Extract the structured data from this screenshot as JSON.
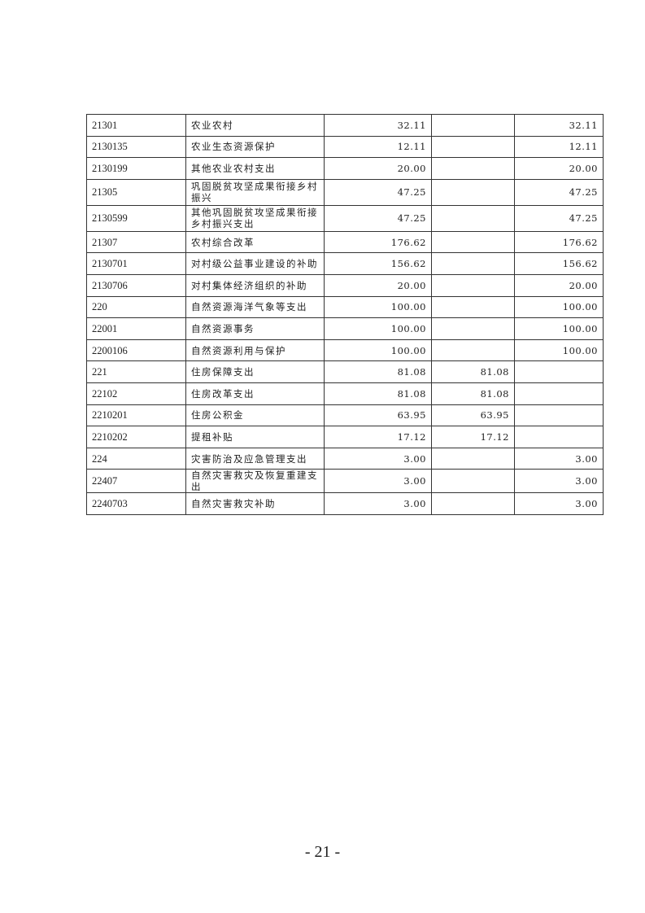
{
  "rows": [
    {
      "code": "21301",
      "name": "农业农村",
      "total": "32.11",
      "basic": "",
      "project": "32.11"
    },
    {
      "code": "2130135",
      "name": "农业生态资源保护",
      "total": "12.11",
      "basic": "",
      "project": "12.11"
    },
    {
      "code": "2130199",
      "name": "其他农业农村支出",
      "total": "20.00",
      "basic": "",
      "project": "20.00"
    },
    {
      "code": "21305",
      "name": "巩固脱贫攻坚成果衔接乡村振兴",
      "total": "47.25",
      "basic": "",
      "project": "47.25"
    },
    {
      "code": "2130599",
      "name": "其他巩固脱贫攻坚成果衔接乡村振兴支出",
      "total": "47.25",
      "basic": "",
      "project": "47.25"
    },
    {
      "code": "21307",
      "name": "农村综合改革",
      "total": "176.62",
      "basic": "",
      "project": "176.62"
    },
    {
      "code": "2130701",
      "name": "对村级公益事业建设的补助",
      "total": "156.62",
      "basic": "",
      "project": "156.62"
    },
    {
      "code": "2130706",
      "name": "对村集体经济组织的补助",
      "total": "20.00",
      "basic": "",
      "project": "20.00"
    },
    {
      "code": "220",
      "name": "自然资源海洋气象等支出",
      "total": "100.00",
      "basic": "",
      "project": "100.00"
    },
    {
      "code": "22001",
      "name": "自然资源事务",
      "total": "100.00",
      "basic": "",
      "project": "100.00"
    },
    {
      "code": "2200106",
      "name": "自然资源利用与保护",
      "total": "100.00",
      "basic": "",
      "project": "100.00"
    },
    {
      "code": "221",
      "name": "住房保障支出",
      "total": "81.08",
      "basic": "81.08",
      "project": ""
    },
    {
      "code": "22102",
      "name": "住房改革支出",
      "total": "81.08",
      "basic": "81.08",
      "project": ""
    },
    {
      "code": "2210201",
      "name": "住房公积金",
      "total": "63.95",
      "basic": "63.95",
      "project": ""
    },
    {
      "code": "2210202",
      "name": "提租补贴",
      "total": "17.12",
      "basic": "17.12",
      "project": ""
    },
    {
      "code": "224",
      "name": "灾害防治及应急管理支出",
      "total": "3.00",
      "basic": "",
      "project": "3.00"
    },
    {
      "code": "22407",
      "name": "自然灾害救灾及恢复重建支出",
      "total": "3.00",
      "basic": "",
      "project": "3.00"
    },
    {
      "code": "2240703",
      "name": "自然灾害救灾补助",
      "total": "3.00",
      "basic": "",
      "project": "3.00"
    }
  ],
  "page_number": "- 21 -"
}
